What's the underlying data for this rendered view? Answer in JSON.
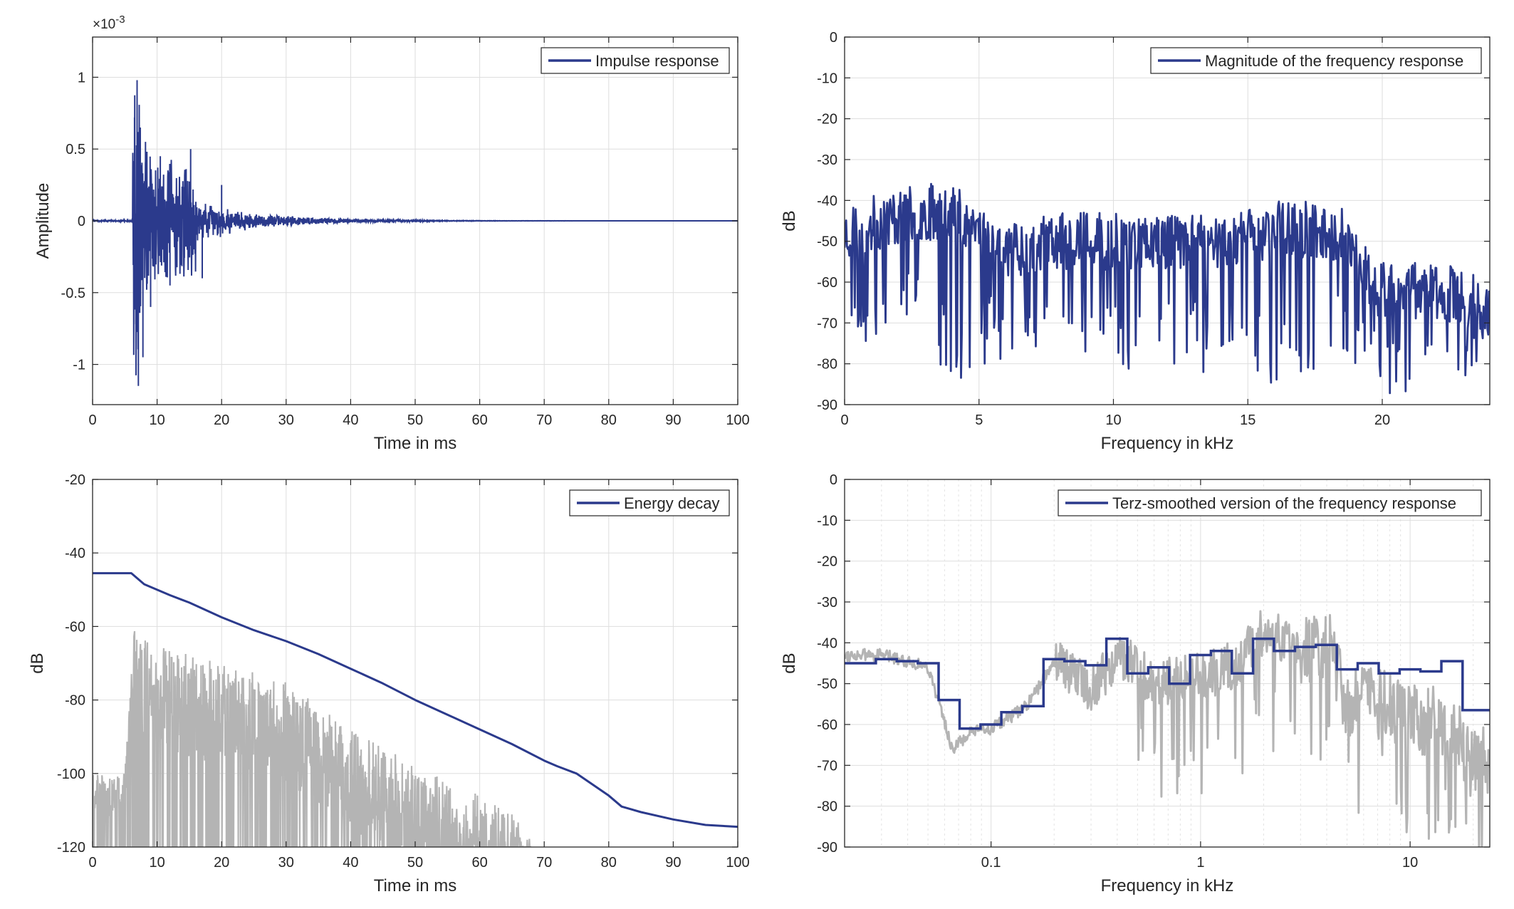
{
  "colors": {
    "series_main": "#2b3a8c",
    "series_gray": "#b4b4b4",
    "axis": "#262626",
    "grid": "#dedede",
    "background": "#ffffff"
  },
  "chart_data": [
    {
      "type": "line",
      "xlabel": "Time in ms",
      "ylabel": "Amplitude",
      "y_exponent_label": "×10",
      "y_exponent_power": "-3",
      "xlim": [
        0,
        100
      ],
      "ylim": [
        -1.28,
        1.28
      ],
      "xticks": [
        0,
        10,
        20,
        30,
        40,
        50,
        60,
        70,
        80,
        90,
        100
      ],
      "xtick_labels": [
        "0",
        "10",
        "20",
        "30",
        "40",
        "50",
        "60",
        "70",
        "80",
        "90",
        "100"
      ],
      "yticks": [
        1,
        0.5,
        0,
        -0.5,
        -1
      ],
      "ytick_labels": [
        "1",
        "0.5",
        "0",
        "-0.5",
        "-1"
      ],
      "grid": true,
      "legend_position": "top-right",
      "series": [
        {
          "name": "Impulse response",
          "color": "#2b3a8c",
          "description_points": {
            "x": [
              0,
              6.0,
              6.5,
              6.7,
              6.9,
              7.1,
              7.4,
              7.8,
              8.2,
              9.0,
              10.5,
              12.0,
              14.5,
              15.2,
              17.0,
              20.0,
              25.0,
              30.0,
              35.0,
              40.0,
              50.0,
              100.0
            ],
            "y": [
              0,
              0.0,
              0.72,
              -0.72,
              0.98,
              -1.15,
              0.65,
              -0.95,
              0.55,
              -0.6,
              0.45,
              -0.45,
              0.36,
              0.5,
              -0.4,
              0.25,
              -0.18,
              0.12,
              0.07,
              0.03,
              0.01,
              0.0
            ]
          }
        }
      ]
    },
    {
      "type": "line",
      "xlabel": "Frequency in kHz",
      "ylabel": "dB",
      "xlim": [
        0,
        24
      ],
      "ylim": [
        -90,
        0
      ],
      "xticks": [
        0,
        5,
        10,
        15,
        20
      ],
      "xtick_labels": [
        "0",
        "5",
        "10",
        "15",
        "20"
      ],
      "yticks": [
        0,
        -10,
        -20,
        -30,
        -40,
        -50,
        -60,
        -70,
        -80,
        -90
      ],
      "ytick_labels": [
        "0",
        "-10",
        "-20",
        "-30",
        "-40",
        "-50",
        "-60",
        "-70",
        "-80",
        "-90"
      ],
      "grid": true,
      "legend_position": "top-right",
      "series": [
        {
          "name": "Magnitude of the frequency response",
          "color": "#2b3a8c",
          "envelope": {
            "x": [
              0,
              2,
              4,
              6,
              8,
              10,
              12,
              14,
              16,
              18,
              18.8,
              19.5,
              20,
              22,
              24
            ],
            "y_mean": [
              -48,
              -44,
              -42,
              -52,
              -50,
              -50,
              -50,
              -50,
              -47,
              -47,
              -50,
              -60,
              -62,
              -62,
              -66
            ],
            "dips_min": [
              -79,
              -70,
              -87,
              -78,
              -76,
              -82,
              -82,
              -83,
              -88,
              -80,
              -80,
              -80,
              -90,
              -90,
              -80
            ]
          }
        }
      ]
    },
    {
      "type": "line",
      "xlabel": "Time in ms",
      "ylabel": "dB",
      "xlim": [
        0,
        100
      ],
      "ylim": [
        -120,
        -20
      ],
      "xticks": [
        0,
        10,
        20,
        30,
        40,
        50,
        60,
        70,
        80,
        90,
        100
      ],
      "xtick_labels": [
        "0",
        "10",
        "20",
        "30",
        "40",
        "50",
        "60",
        "70",
        "80",
        "90",
        "100"
      ],
      "yticks": [
        -20,
        -40,
        -60,
        -80,
        -100,
        -120
      ],
      "ytick_labels": [
        "-20",
        "-40",
        "-60",
        "-80",
        "-100",
        "-120"
      ],
      "grid": true,
      "legend_position": "top-right",
      "series": [
        {
          "name": "Energy decay",
          "color": "#2b3a8c",
          "x": [
            0,
            6,
            8,
            12,
            15,
            20,
            25,
            30,
            35,
            40,
            45,
            50,
            55,
            60,
            65,
            70,
            72,
            75,
            80,
            82,
            85,
            90,
            95,
            100
          ],
          "y": [
            -45.5,
            -45.5,
            -48.5,
            -51.5,
            -53.5,
            -57.5,
            -61,
            -64,
            -67.5,
            -71.5,
            -75.5,
            -80,
            -84,
            -88,
            -92,
            -96.5,
            -98,
            -100,
            -106,
            -109,
            -110.5,
            -112.5,
            -114,
            -114.5
          ]
        },
        {
          "name": "",
          "color": "#b4b4b4",
          "envelope": {
            "x": [
              0,
              5,
              6.5,
              8,
              10,
              20,
              30,
              40,
              50,
              60,
              65,
              68
            ],
            "y_top": [
              -100,
              -100,
              -59,
              -63,
              -65,
              -70,
              -75,
              -88,
              -97,
              -106,
              -110,
              -118
            ]
          }
        }
      ]
    },
    {
      "type": "line",
      "xlabel": "Frequency in kHz",
      "ylabel": "dB",
      "xscale": "log",
      "xlim": [
        0.02,
        24
      ],
      "ylim": [
        -90,
        0
      ],
      "xticks": [
        0.1,
        1,
        10
      ],
      "xtick_labels": [
        "0.1",
        "1",
        "10"
      ],
      "yticks": [
        0,
        -10,
        -20,
        -30,
        -40,
        -50,
        -60,
        -70,
        -80,
        -90
      ],
      "ytick_labels": [
        "0",
        "-10",
        "-20",
        "-30",
        "-40",
        "-50",
        "-60",
        "-70",
        "-80",
        "-90"
      ],
      "grid": true,
      "legend_position": "top-right",
      "series": [
        {
          "name": "Terz-smoothed version of the frequency response",
          "color": "#2b3a8c",
          "steps": {
            "edges": [
              0.02,
              0.0282,
              0.0355,
              0.0447,
              0.0562,
              0.0708,
              0.0891,
              0.112,
              0.141,
              0.178,
              0.224,
              0.282,
              0.355,
              0.447,
              0.562,
              0.708,
              0.891,
              1.12,
              1.41,
              1.78,
              2.24,
              2.82,
              3.55,
              4.47,
              5.62,
              7.08,
              8.91,
              11.2,
              14.1,
              17.8,
              24.0
            ],
            "values": [
              -45,
              -44,
              -44.5,
              -45,
              -54,
              -61,
              -60,
              -57,
              -55.5,
              -44,
              -44.5,
              -45.5,
              -39,
              -47.5,
              -46,
              -50,
              -43,
              -42,
              -47.5,
              -39,
              -42,
              -41,
              -40.5,
              -46.5,
              -45,
              -47.5,
              -46.5,
              -47,
              -44.5,
              -56.5
            ]
          }
        },
        {
          "name": "",
          "color": "#b4b4b4",
          "envelope": {
            "x": [
              0.02,
              0.03,
              0.05,
              0.065,
              0.08,
              0.1,
              0.15,
              0.2,
              0.3,
              0.4,
              0.6,
              1.0,
              1.5,
              2.0,
              3.0,
              4.0,
              5.0,
              7.0,
              10.0,
              15.0,
              20.0,
              24.0
            ],
            "y": [
              -43,
              -43,
              -46,
              -66,
              -62,
              -61,
              -55,
              -44,
              -51,
              -43,
              -50,
              -48,
              -45,
              -37,
              -41,
              -40,
              -54,
              -55,
              -58,
              -60,
              -70,
              -68
            ]
          }
        }
      ]
    }
  ]
}
